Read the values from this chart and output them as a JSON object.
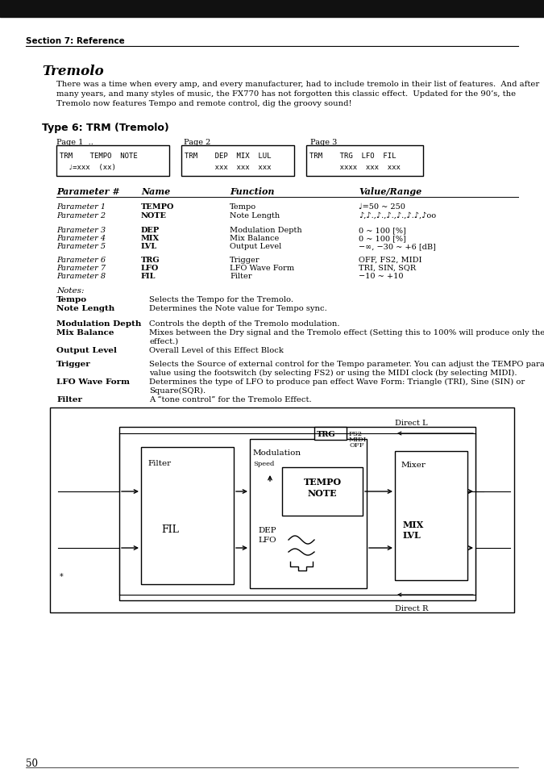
{
  "page_bg": "#ffffff",
  "top_bar_color": "#1a1a1a",
  "section_header": "Section 7: Reference",
  "title": "Tremolo",
  "type_header": "Type 6: TRM (Tremolo)",
  "page_labels": [
    "Page 1  ..",
    "Page 2",
    "Page 3"
  ],
  "page1_line1": "TRM    TEMPO  NOTE",
  "page1_line2": "  ♩=xxx  (xx)",
  "page2_line1": "TRM    DEP  MIX  LUL",
  "page2_line2": "       xxx  xxx  xxx",
  "page3_line1": "TRM    TRG  LFO  FIL",
  "page3_line2": "       xxxx  xxx  xxx",
  "table_headers": [
    "Parameter #",
    "Name",
    "Function",
    "Value/Range"
  ],
  "page_number": "50"
}
